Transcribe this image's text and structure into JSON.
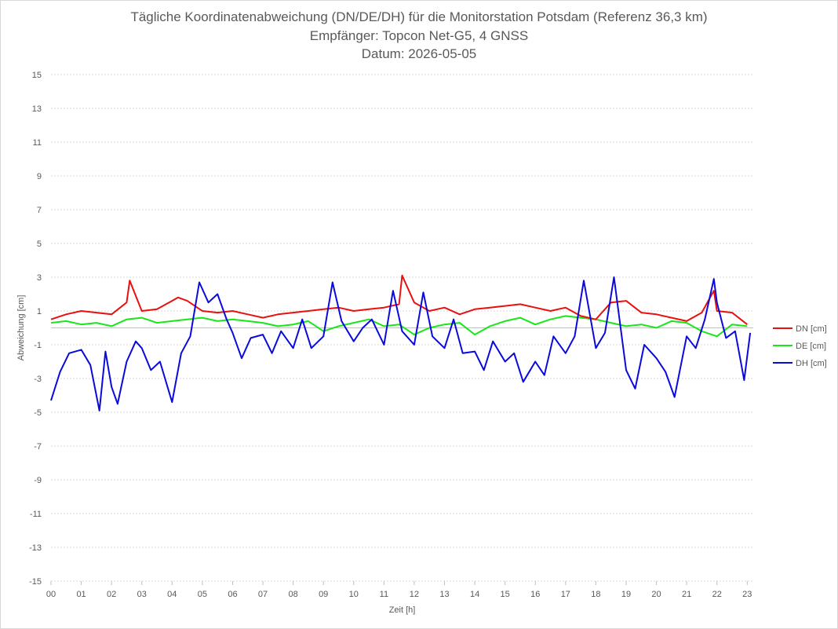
{
  "chart_data": {
    "type": "line",
    "title": "Tägliche Koordinatenabweichung (DN/DE/DH) für die Monitorstation Potsdam (Referenz 36,3 km)",
    "subtitle": "Empfänger: Topcon Net-G5, 4 GNSS",
    "date_line": "Datum: 2026-05-05",
    "xlabel": "Zeit [h]",
    "ylabel": "Abweichung [cm]",
    "xlim": [
      0,
      23.2
    ],
    "ylim": [
      -15,
      15
    ],
    "yticks": [
      "15",
      "13",
      "11",
      "9",
      "7",
      "5",
      "3",
      "1",
      "-1",
      "-3",
      "-5",
      "-7",
      "-9",
      "-11",
      "-13",
      "-15"
    ],
    "xticks": [
      "00",
      "01",
      "02",
      "03",
      "04",
      "05",
      "06",
      "07",
      "08",
      "09",
      "10",
      "11",
      "12",
      "13",
      "14",
      "15",
      "16",
      "17",
      "18",
      "19",
      "20",
      "21",
      "22",
      "23"
    ],
    "grid": true,
    "legend_position": "right",
    "colors": {
      "DN": "#e81010",
      "DE": "#19e619",
      "DH": "#0a0adc"
    },
    "series": [
      {
        "name": "DN [cm]",
        "x": [
          0,
          0.5,
          1,
          1.5,
          2,
          2.5,
          2.6,
          3,
          3.5,
          4,
          4.2,
          4.5,
          5,
          5.5,
          6,
          6.5,
          7,
          7.5,
          8,
          8.5,
          9,
          9.5,
          10,
          10.5,
          11,
          11.5,
          11.6,
          12,
          12.5,
          13,
          13.5,
          14,
          14.5,
          15,
          15.5,
          16,
          16.5,
          17,
          17.5,
          18,
          18.5,
          19,
          19.5,
          20,
          20.5,
          21,
          21.5,
          21.9,
          22,
          22.5,
          23
        ],
        "y": [
          0.5,
          0.8,
          1.0,
          0.9,
          0.8,
          1.5,
          2.8,
          1.0,
          1.1,
          1.6,
          1.8,
          1.6,
          1.0,
          0.9,
          1.0,
          0.8,
          0.6,
          0.8,
          0.9,
          1.0,
          1.1,
          1.2,
          1.0,
          1.1,
          1.2,
          1.4,
          3.1,
          1.5,
          1.0,
          1.2,
          0.8,
          1.1,
          1.2,
          1.3,
          1.4,
          1.2,
          1.0,
          1.2,
          0.7,
          0.5,
          1.5,
          1.6,
          0.9,
          0.8,
          0.6,
          0.4,
          0.9,
          2.2,
          1.0,
          0.9,
          0.2
        ]
      },
      {
        "name": "DE [cm]",
        "x": [
          0,
          0.5,
          1,
          1.5,
          2,
          2.5,
          3,
          3.5,
          4,
          4.5,
          5,
          5.5,
          6,
          6.5,
          7,
          7.5,
          8,
          8.5,
          9,
          9.5,
          10,
          10.5,
          11,
          11.5,
          12,
          12.5,
          13,
          13.5,
          14,
          14.5,
          15,
          15.5,
          16,
          16.5,
          17,
          17.5,
          18,
          18.5,
          19,
          19.5,
          20,
          20.5,
          21,
          21.5,
          22,
          22.5,
          23
        ],
        "y": [
          0.3,
          0.4,
          0.2,
          0.3,
          0.1,
          0.5,
          0.6,
          0.3,
          0.4,
          0.5,
          0.6,
          0.4,
          0.5,
          0.4,
          0.3,
          0.1,
          0.2,
          0.4,
          -0.2,
          0.1,
          0.3,
          0.5,
          0.1,
          0.2,
          -0.4,
          0.0,
          0.2,
          0.3,
          -0.4,
          0.1,
          0.4,
          0.6,
          0.2,
          0.5,
          0.7,
          0.6,
          0.5,
          0.3,
          0.1,
          0.2,
          0.0,
          0.4,
          0.3,
          -0.2,
          -0.5,
          0.2,
          0.1
        ]
      },
      {
        "name": "DH [cm]",
        "x": [
          0,
          0.3,
          0.6,
          1,
          1.3,
          1.6,
          1.8,
          2,
          2.2,
          2.5,
          2.8,
          3,
          3.3,
          3.6,
          4,
          4.3,
          4.6,
          4.9,
          5.2,
          5.5,
          5.8,
          6,
          6.3,
          6.6,
          7,
          7.3,
          7.6,
          8,
          8.3,
          8.6,
          9,
          9.3,
          9.6,
          10,
          10.3,
          10.6,
          11,
          11.3,
          11.6,
          12,
          12.3,
          12.6,
          13,
          13.3,
          13.6,
          14,
          14.3,
          14.6,
          15,
          15.3,
          15.6,
          16,
          16.3,
          16.6,
          17,
          17.3,
          17.6,
          18,
          18.3,
          18.6,
          19,
          19.3,
          19.6,
          20,
          20.3,
          20.6,
          21,
          21.3,
          21.6,
          21.9,
          22,
          22.3,
          22.6,
          22.9,
          23.1
        ],
        "y": [
          -4.3,
          -2.6,
          -1.5,
          -1.3,
          -2.2,
          -4.9,
          -1.4,
          -3.5,
          -4.5,
          -2.0,
          -0.8,
          -1.2,
          -2.5,
          -2.0,
          -4.4,
          -1.5,
          -0.5,
          2.7,
          1.5,
          2.0,
          0.5,
          -0.3,
          -1.8,
          -0.6,
          -0.4,
          -1.5,
          -0.2,
          -1.2,
          0.5,
          -1.2,
          -0.5,
          2.7,
          0.4,
          -0.8,
          0.0,
          0.5,
          -1.0,
          2.2,
          -0.2,
          -1.0,
          2.1,
          -0.5,
          -1.2,
          0.5,
          -1.5,
          -1.4,
          -2.5,
          -0.8,
          -2.0,
          -1.5,
          -3.2,
          -2.0,
          -2.8,
          -0.5,
          -1.5,
          -0.5,
          2.8,
          -1.2,
          -0.3,
          3.0,
          -2.5,
          -3.6,
          -1.0,
          -1.8,
          -2.6,
          -4.1,
          -0.5,
          -1.2,
          0.5,
          2.9,
          1.5,
          -0.6,
          -0.2,
          -3.1,
          -0.3
        ]
      }
    ]
  }
}
